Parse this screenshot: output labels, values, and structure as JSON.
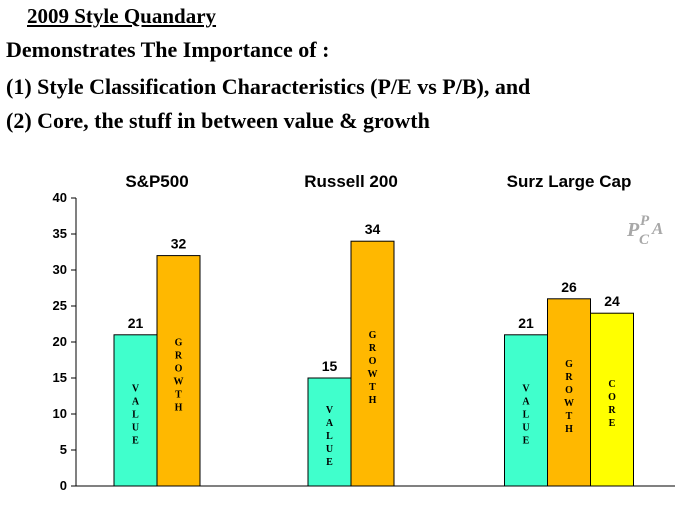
{
  "header": {
    "title": "2009 Style Quandary",
    "line1": "Demonstrates The Importance of :",
    "line2": "(1) Style Classification Characteristics (P/E vs P/B), and",
    "line3": "(2) Core, the stuff in between value & growth"
  },
  "logo": {
    "p1": "P",
    "c": "C",
    "p2": "P",
    "a": "A"
  },
  "chart_data": {
    "type": "bar",
    "ylim": [
      0,
      40
    ],
    "yticks": [
      0,
      5,
      10,
      15,
      20,
      25,
      30,
      35,
      40
    ],
    "grid": false,
    "groups": [
      {
        "name": "S&P500",
        "bars": [
          {
            "label": "VALUE",
            "value": 21,
            "color": "#40ffcc"
          },
          {
            "label": "GROWTH",
            "value": 32,
            "color": "#ffb800"
          }
        ]
      },
      {
        "name": "Russell 200",
        "bars": [
          {
            "label": "VALUE",
            "value": 15,
            "color": "#40ffcc"
          },
          {
            "label": "GROWTH",
            "value": 34,
            "color": "#ffb800"
          }
        ]
      },
      {
        "name": "Surz Large Cap",
        "bars": [
          {
            "label": "VALUE",
            "value": 21,
            "color": "#40ffcc"
          },
          {
            "label": "GROWTH",
            "value": 26,
            "color": "#ffb800"
          },
          {
            "label": "CORE",
            "value": 24,
            "color": "#ffff00"
          }
        ]
      }
    ]
  }
}
